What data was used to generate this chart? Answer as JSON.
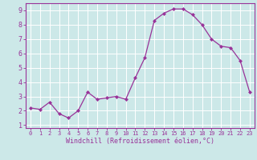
{
  "x": [
    0,
    1,
    2,
    3,
    4,
    5,
    6,
    7,
    8,
    9,
    10,
    11,
    12,
    13,
    14,
    15,
    16,
    17,
    18,
    19,
    20,
    21,
    22,
    23
  ],
  "y": [
    2.2,
    2.1,
    2.6,
    1.8,
    1.5,
    2.0,
    3.3,
    2.8,
    2.9,
    3.0,
    2.8,
    4.3,
    5.7,
    8.3,
    8.8,
    9.1,
    9.1,
    8.7,
    8.0,
    7.0,
    6.5,
    6.4,
    5.5,
    3.3
  ],
  "line_color": "#993399",
  "marker": "D",
  "marker_size": 2.0,
  "bg_color": "#cce8e8",
  "grid_color": "#ffffff",
  "xlabel": "Windchill (Refroidissement éolien,°C)",
  "xlim": [
    -0.5,
    23.5
  ],
  "ylim": [
    0.8,
    9.5
  ],
  "yticks": [
    1,
    2,
    3,
    4,
    5,
    6,
    7,
    8,
    9
  ],
  "xticks": [
    0,
    1,
    2,
    3,
    4,
    5,
    6,
    7,
    8,
    9,
    10,
    11,
    12,
    13,
    14,
    15,
    16,
    17,
    18,
    19,
    20,
    21,
    22,
    23
  ],
  "tick_color": "#993399",
  "label_color": "#993399",
  "spine_color": "#993399",
  "tick_fontsize": 5.0,
  "xlabel_fontsize": 6.0
}
